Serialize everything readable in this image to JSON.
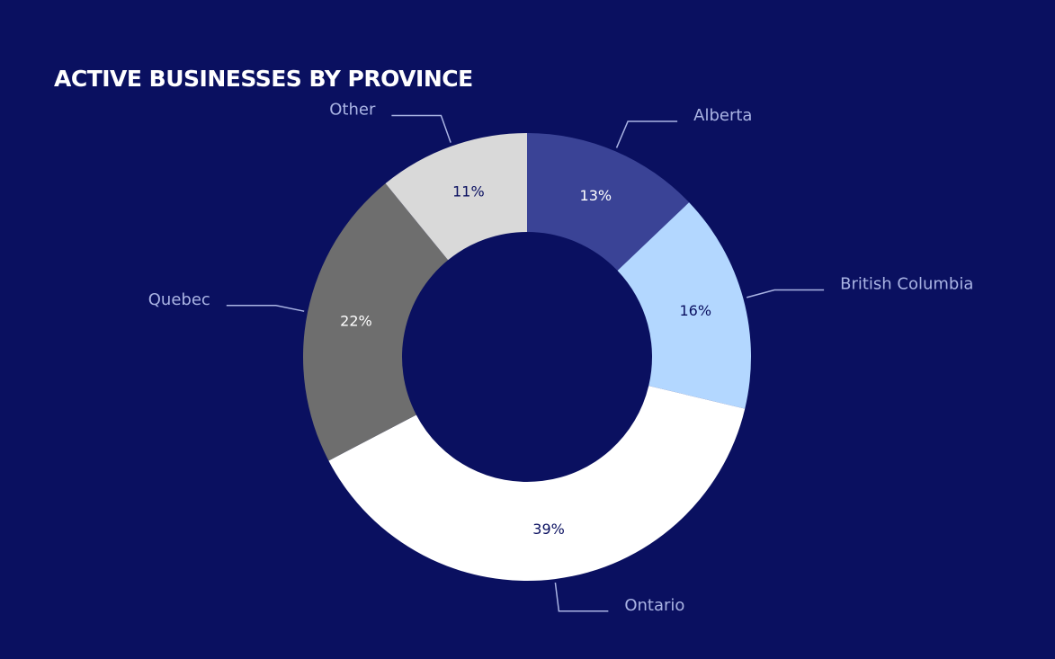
{
  "chart_data": {
    "type": "pie",
    "title": "ACTIVE BUSINESSES BY PROVINCE",
    "categories": [
      "Alberta",
      "British Columbia",
      "Ontario",
      "Quebec",
      "Other"
    ],
    "values": [
      13,
      16,
      39,
      22,
      11
    ],
    "value_labels": [
      "13%",
      "16%",
      "39%",
      "22%",
      "11%"
    ],
    "colors": [
      "#3a4396",
      "#b3d7ff",
      "#ffffff",
      "#6e6e6e",
      "#d9d9d9"
    ],
    "donut": true
  }
}
